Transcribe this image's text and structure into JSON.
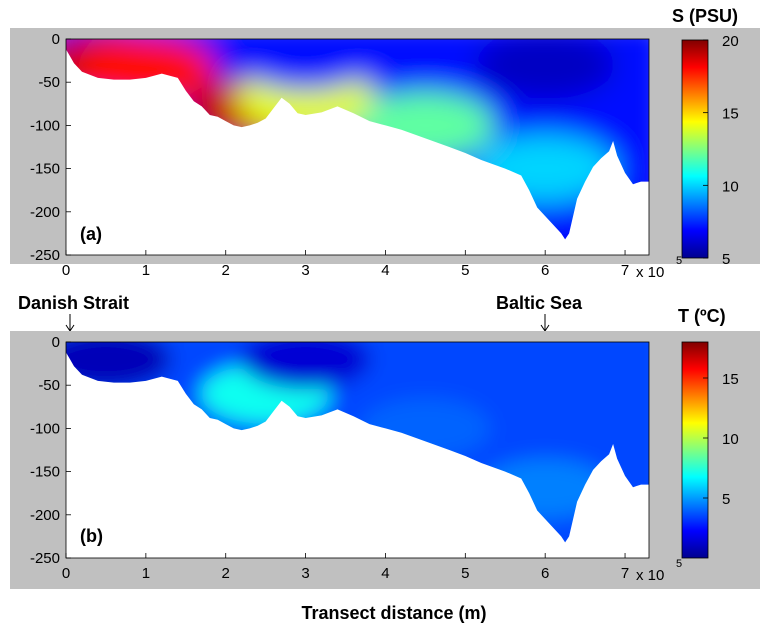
{
  "chart_data": [
    {
      "type": "heatmap",
      "panel_label": "(a)",
      "colorbar_title": "S (PSU)",
      "colorbar_ticks": [
        "20",
        "15",
        "10",
        "5"
      ],
      "colorbar_range": [
        5,
        20
      ],
      "xlabel": "",
      "x_ticks": [
        "0",
        "1",
        "2",
        "3",
        "4",
        "5",
        "6",
        "7"
      ],
      "x_multiplier": "x 10",
      "x_multiplier_exp": "5",
      "xlim": [
        0,
        7.3
      ],
      "y_ticks": [
        "0",
        "-50",
        "-100",
        "-150",
        "-200",
        "-250"
      ],
      "ylim": [
        -250,
        0
      ],
      "colormap": "jet",
      "bottom_profile": {
        "x": [
          0,
          0.05,
          0.1,
          0.2,
          0.4,
          0.6,
          0.8,
          1.0,
          1.2,
          1.4,
          1.5,
          1.6,
          1.7,
          1.8,
          1.9,
          2.0,
          2.1,
          2.2,
          2.3,
          2.4,
          2.5,
          2.6,
          2.7,
          2.8,
          2.9,
          3.0,
          3.2,
          3.4,
          3.6,
          3.8,
          4.0,
          4.2,
          4.5,
          4.8,
          5.0,
          5.2,
          5.5,
          5.7,
          5.8,
          5.9,
          6.0,
          6.1,
          6.2,
          6.25,
          6.3,
          6.35,
          6.4,
          6.5,
          6.6,
          6.7,
          6.8,
          6.85,
          6.9,
          7.0,
          7.1,
          7.2,
          7.3
        ],
        "depth": [
          -12,
          -20,
          -28,
          -38,
          -45,
          -47,
          -47,
          -45,
          -40,
          -45,
          -60,
          -72,
          -78,
          -88,
          -90,
          -95,
          -100,
          -102,
          -100,
          -97,
          -92,
          -80,
          -68,
          -75,
          -86,
          -88,
          -85,
          -78,
          -86,
          -95,
          -100,
          -105,
          -115,
          -125,
          -132,
          -140,
          -150,
          -158,
          -175,
          -195,
          -205,
          -215,
          -225,
          -232,
          -225,
          -205,
          -185,
          -165,
          -148,
          -138,
          -130,
          -118,
          -135,
          -155,
          -168,
          -165,
          -165
        ]
      },
      "field_description_points": [
        {
          "x": 0.5,
          "depth": -30,
          "value": 19
        },
        {
          "x": 1.0,
          "depth": -35,
          "value": 18
        },
        {
          "x": 2.3,
          "depth": -85,
          "value": 19
        },
        {
          "x": 3.0,
          "depth": -70,
          "value": 14
        },
        {
          "x": 4.5,
          "depth": -100,
          "value": 12
        },
        {
          "x": 6.0,
          "depth": -150,
          "value": 10
        },
        {
          "x": 3.0,
          "depth": -20,
          "value": 7
        },
        {
          "x": 6.0,
          "depth": -30,
          "value": 6
        }
      ]
    },
    {
      "type": "heatmap",
      "panel_label": "(b)",
      "colorbar_title": "T (ºC)",
      "colorbar_ticks": [
        "15",
        "10",
        "5"
      ],
      "colorbar_range": [
        0,
        18
      ],
      "xlabel": "Transect distance (m)",
      "x_ticks": [
        "0",
        "1",
        "2",
        "3",
        "4",
        "5",
        "6",
        "7"
      ],
      "x_multiplier": "x 10",
      "x_multiplier_exp": "5",
      "xlim": [
        0,
        7.3
      ],
      "y_ticks": [
        "0",
        "-50",
        "-100",
        "-150",
        "-200",
        "-250"
      ],
      "ylim": [
        -250,
        0
      ],
      "colormap": "jet",
      "field_description_points": [
        {
          "x": 0.5,
          "depth": -20,
          "value": 1
        },
        {
          "x": 2.5,
          "depth": -60,
          "value": 7
        },
        {
          "x": 3.0,
          "depth": -20,
          "value": 1.5
        },
        {
          "x": 4.5,
          "depth": -100,
          "value": 4
        },
        {
          "x": 6.0,
          "depth": -170,
          "value": 4.5
        }
      ]
    }
  ],
  "annotations": {
    "left_station": "Danish Strait",
    "right_station": "Baltic Sea"
  },
  "colors": {
    "frame_bg": "#c0c0c0",
    "no_data": "#ffffff"
  }
}
